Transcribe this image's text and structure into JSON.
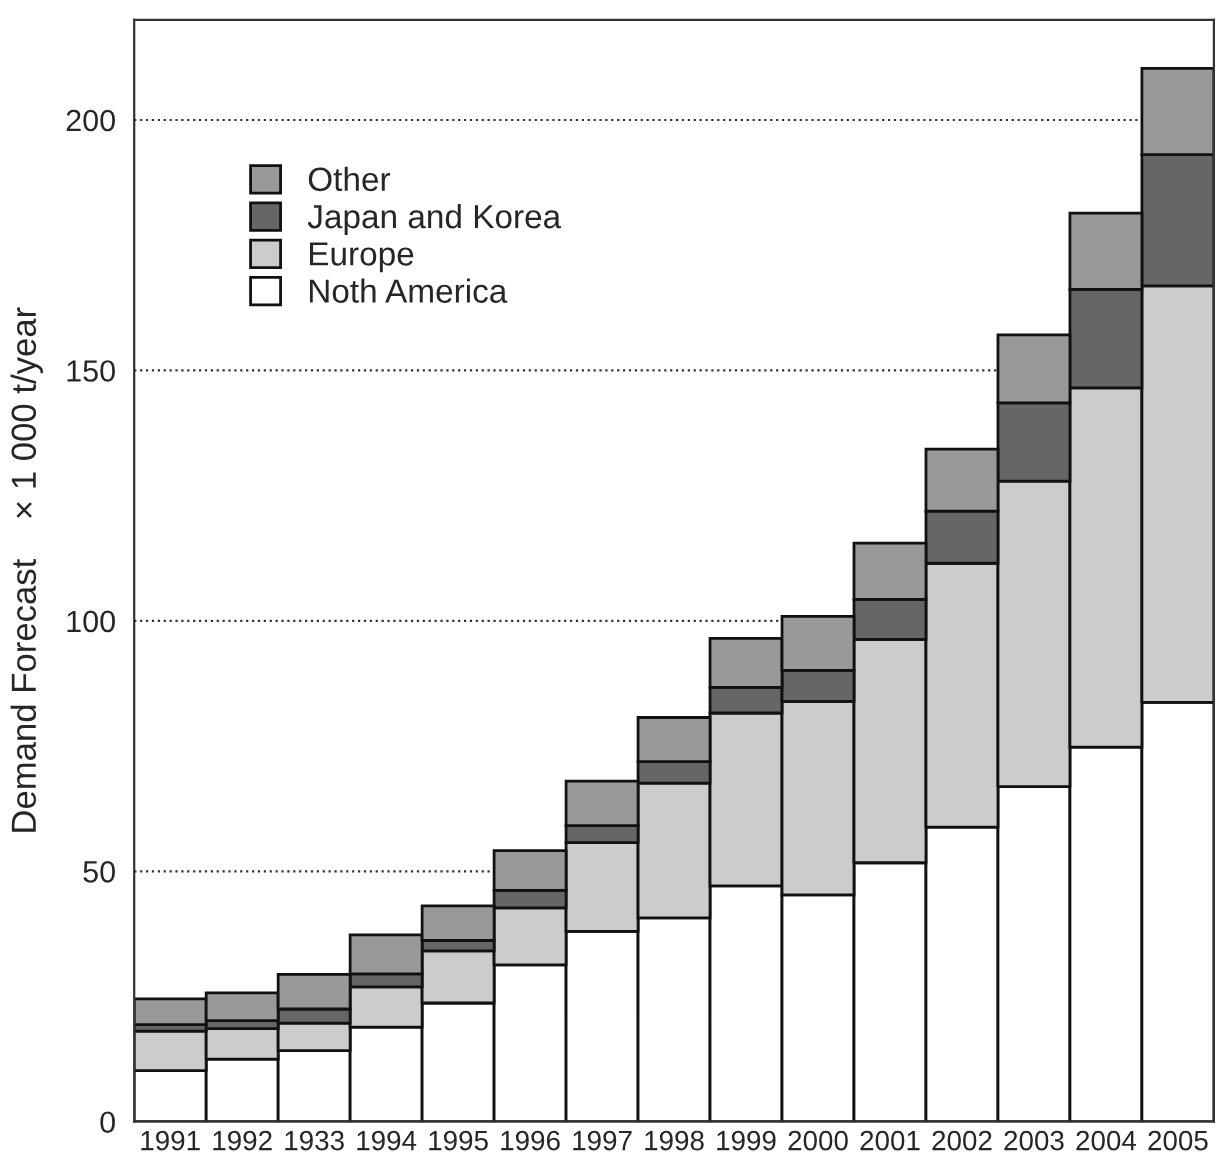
{
  "chart_data": {
    "type": "bar",
    "stacked": true,
    "ylabel": "Demand Forecast    × 1 000 t/year",
    "categories": [
      "1991",
      "1992",
      "1933",
      "1994",
      "1995",
      "1996",
      "1997",
      "1998",
      "1999",
      "2000",
      "2001",
      "2002",
      "2003",
      "2004",
      "2005"
    ],
    "series": [
      {
        "name": "Noth America",
        "color": "#ffffff",
        "values": [
          10.2,
          12.5,
          14.2,
          18.9,
          23.7,
          31.3,
          38.0,
          40.7,
          47.1,
          45.3,
          51.7,
          58.8,
          66.9,
          74.8,
          83.7
        ]
      },
      {
        "name": "Europe",
        "color": "#cccccc",
        "values": [
          7.9,
          6.1,
          5.5,
          8.0,
          10.4,
          11.4,
          17.7,
          26.9,
          34.5,
          38.6,
          44.6,
          52.7,
          61.0,
          71.7,
          83.2
        ]
      },
      {
        "name": "Japan and Korea",
        "color": "#666666",
        "values": [
          1.3,
          1.6,
          2.8,
          2.6,
          2.1,
          3.5,
          3.4,
          4.3,
          5.1,
          6.2,
          8.0,
          10.4,
          15.6,
          19.7,
          26.2
        ]
      },
      {
        "name": "Other",
        "color": "#999999",
        "values": [
          5.1,
          5.5,
          6.9,
          7.8,
          6.9,
          7.9,
          8.9,
          8.8,
          9.8,
          10.8,
          11.2,
          12.4,
          13.6,
          15.2,
          17.2
        ]
      }
    ],
    "ylim": [
      0,
      220
    ],
    "yticks": [
      0,
      50,
      100,
      150,
      200
    ],
    "grid": "y",
    "legend": "top left"
  }
}
